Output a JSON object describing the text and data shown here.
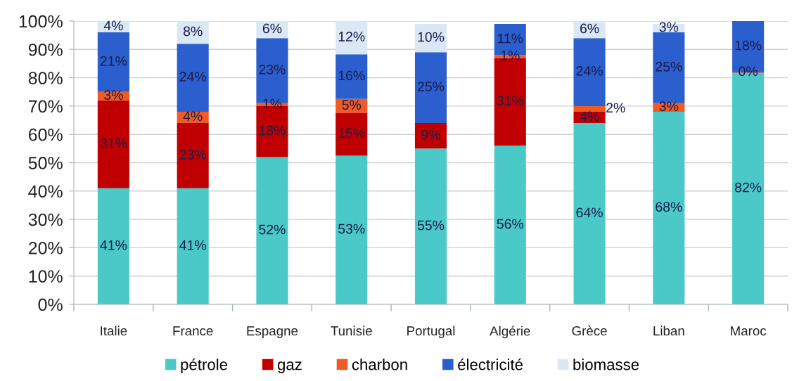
{
  "chart_data": {
    "type": "bar",
    "stacked": true,
    "categories": [
      "Italie",
      "France",
      "Espagne",
      "Tunisie",
      "Portugal",
      "Algérie",
      "Grèce",
      "Liban",
      "Maroc"
    ],
    "series": [
      {
        "name": "pétrole",
        "color": "#4bc9c9",
        "values": [
          41,
          41,
          52,
          52.5,
          55,
          56,
          64,
          68,
          81.75
        ],
        "value_labels": [
          "41%",
          "41%",
          "52%",
          "53%",
          "55%",
          "56%",
          "64%",
          "68%",
          "82%"
        ]
      },
      {
        "name": "gaz",
        "color": "#c00000",
        "values": [
          31,
          23,
          18,
          15,
          9,
          31,
          4,
          null,
          0.25
        ],
        "value_labels": [
          "31%",
          "23%",
          "18%",
          "15%",
          "9%",
          "31%",
          "4%",
          null,
          "0%"
        ]
      },
      {
        "name": "charbon",
        "color": "#f15a22",
        "values": [
          3,
          4,
          1,
          5,
          null,
          1,
          2,
          3,
          null
        ],
        "value_labels": [
          "3%",
          "4%",
          "1%",
          "5%",
          null,
          "1%",
          "2%",
          "3%",
          null
        ]
      },
      {
        "name": "électricité",
        "color": "#2b5fce",
        "values": [
          21,
          24,
          23,
          15.75,
          25,
          11,
          24,
          25,
          18
        ],
        "value_labels": [
          "21%",
          "24%",
          "23%",
          "16%",
          "25%",
          "11%",
          "24%",
          "25%",
          "18%"
        ]
      },
      {
        "name": "biomasse",
        "color": "#dae7f4",
        "values": [
          4,
          8,
          6,
          11.75,
          10,
          null,
          6,
          3,
          null
        ],
        "value_labels": [
          "4%",
          "8%",
          "6%",
          "12%",
          "10%",
          null,
          "6%",
          "3%",
          null
        ]
      }
    ],
    "ylim": [
      0,
      100
    ],
    "yticks": [
      {
        "value": 0,
        "label": "0%"
      },
      {
        "value": 10,
        "label": "10%"
      },
      {
        "value": 20,
        "label": "20%"
      },
      {
        "value": 30,
        "label": "30%"
      },
      {
        "value": 40,
        "label": "40%"
      },
      {
        "value": 50,
        "label": "50%"
      },
      {
        "value": 60,
        "label": "60%"
      },
      {
        "value": 70,
        "label": "70%"
      },
      {
        "value": 80,
        "label": "80%"
      },
      {
        "value": 90,
        "label": "90%"
      },
      {
        "value": 100,
        "label": "100%"
      }
    ],
    "grid": "y",
    "legend": "bottom"
  }
}
